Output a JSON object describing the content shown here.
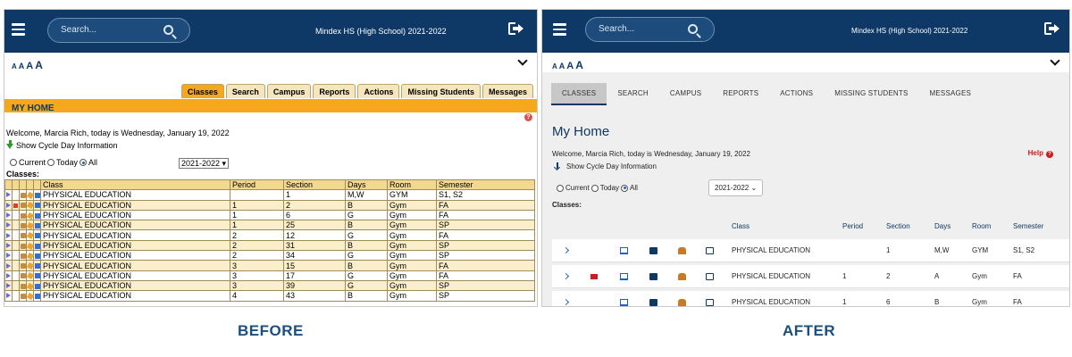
{
  "before": {
    "caption": "BEFORE",
    "search_placeholder": "Search...",
    "school": "Mindex HS (High School) 2021-2022",
    "font_sizes": [
      "A",
      "A",
      "A",
      "A"
    ],
    "tabs": [
      "Classes",
      "Search",
      "Campus",
      "Reports",
      "Actions",
      "Missing Students",
      "Messages"
    ],
    "active_tab": "Classes",
    "page_title": "MY HOME",
    "help_glyph": "?",
    "welcome": "Welcome, Marcia Rich, today is Wednesday, January 19, 2022",
    "cycle": "Show Cycle Day Information",
    "radios": [
      "Current",
      "Today",
      "All"
    ],
    "selected_radio": "All",
    "year": "2021-2022",
    "classes_label": "Classes:",
    "columns": [
      "Class",
      "Period",
      "Section",
      "Days",
      "Room",
      "Semester"
    ],
    "rows": [
      [
        "PHYSICAL EDUCATION",
        "",
        "1",
        "M,W",
        "GYM",
        "S1, S2"
      ],
      [
        "PHYSICAL EDUCATION",
        "1",
        "2",
        "B",
        "Gym",
        "FA"
      ],
      [
        "PHYSICAL EDUCATION",
        "1",
        "6",
        "G",
        "Gym",
        "FA"
      ],
      [
        "PHYSICAL EDUCATION",
        "1",
        "25",
        "B",
        "Gym",
        "SP"
      ],
      [
        "PHYSICAL EDUCATION",
        "2",
        "12",
        "G",
        "Gym",
        "FA"
      ],
      [
        "PHYSICAL EDUCATION",
        "2",
        "31",
        "B",
        "Gym",
        "SP"
      ],
      [
        "PHYSICAL EDUCATION",
        "2",
        "34",
        "G",
        "Gym",
        "SP"
      ],
      [
        "PHYSICAL EDUCATION",
        "3",
        "15",
        "B",
        "Gym",
        "FA"
      ],
      [
        "PHYSICAL EDUCATION",
        "3",
        "17",
        "G",
        "Gym",
        "FA"
      ],
      [
        "PHYSICAL EDUCATION",
        "3",
        "39",
        "G",
        "Gym",
        "SP"
      ],
      [
        "PHYSICAL EDUCATION",
        "4",
        "43",
        "B",
        "Gym",
        "SP"
      ]
    ],
    "flagged_rows": [
      1
    ]
  },
  "after": {
    "caption": "AFTER",
    "search_placeholder": "Search...",
    "school": "Mindex HS (High School) 2021-2022",
    "font_sizes": [
      "A",
      "A",
      "A",
      "A"
    ],
    "tabs": [
      "CLASSES",
      "SEARCH",
      "CAMPUS",
      "REPORTS",
      "ACTIONS",
      "MISSING STUDENTS",
      "MESSAGES"
    ],
    "active_tab": "CLASSES",
    "page_title": "My Home",
    "help_label": "Help",
    "help_glyph": "?",
    "welcome": "Welcome, Marcia Rich, today is Wednesday, January 19, 2022",
    "cycle": "Show Cycle Day Information",
    "radios": [
      "Current",
      "Today",
      "All"
    ],
    "selected_radio": "All",
    "year": "2021-2022",
    "classes_label": "Classes:",
    "columns": [
      "Class",
      "Period",
      "Section",
      "Days",
      "Room",
      "Semester"
    ],
    "rows": [
      [
        "PHYSICAL EDUCATION",
        "",
        "1",
        "M,W",
        "GYM",
        "S1, S2"
      ],
      [
        "PHYSICAL EDUCATION",
        "1",
        "2",
        "A",
        "Gym",
        "FA"
      ],
      [
        "PHYSICAL EDUCATION",
        "1",
        "6",
        "B",
        "Gym",
        "FA"
      ]
    ],
    "flagged_rows": [
      1
    ]
  },
  "colors": {
    "navy": "#0e3865",
    "orange": "#f6a81c",
    "red": "#c81e1e",
    "blue": "#1a5fd0"
  }
}
